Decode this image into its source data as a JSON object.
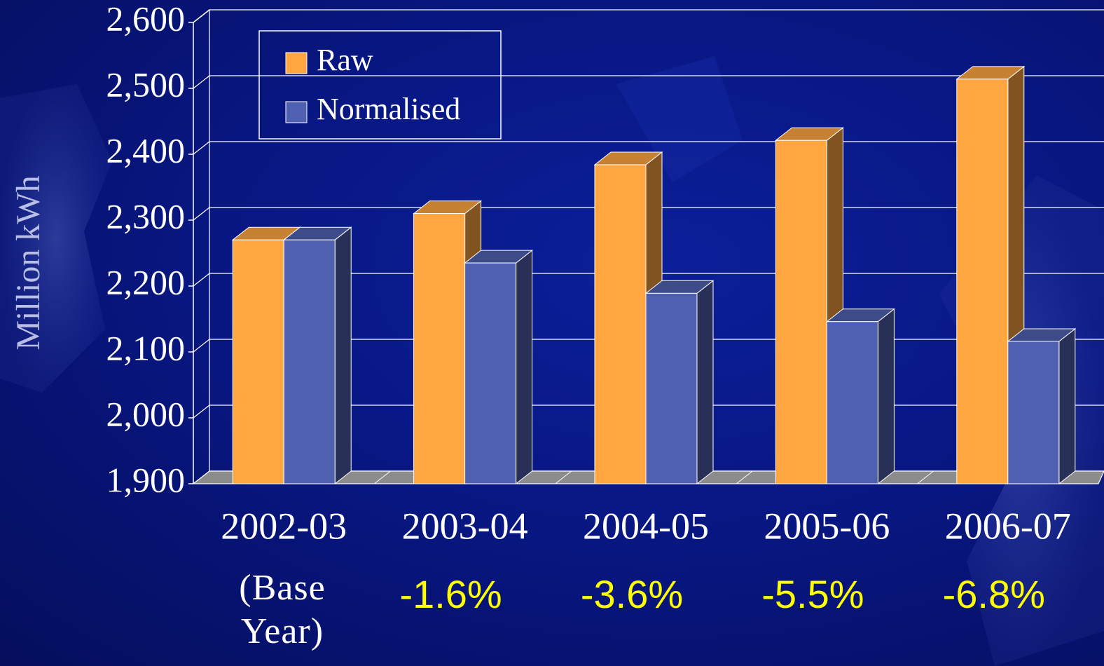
{
  "chart_data": {
    "type": "bar3d",
    "y_label": "Million kWh",
    "categories": [
      "2002-03",
      "2003-04",
      "2004-05",
      "2005-06",
      "2006-07"
    ],
    "series": [
      {
        "name": "Raw",
        "color": "#ffa640",
        "values": [
          2270,
          2310,
          2384,
          2421,
          2514
        ]
      },
      {
        "name": "Normalised",
        "color": "#5060b0",
        "values": [
          2270,
          2235,
          2189,
          2146,
          2116
        ]
      }
    ],
    "ylim": [
      1900,
      2600
    ],
    "yticks": [
      {
        "value": 1900,
        "label": "1,900"
      },
      {
        "value": 2000,
        "label": "2,000"
      },
      {
        "value": 2100,
        "label": "2,100"
      },
      {
        "value": 2200,
        "label": "2,200"
      },
      {
        "value": 2300,
        "label": "2,300"
      },
      {
        "value": 2400,
        "label": "2,400"
      },
      {
        "value": 2500,
        "label": "2,500"
      },
      {
        "value": 2600,
        "label": "2,600"
      }
    ],
    "grid": true,
    "base_year_note": "(Base Year)",
    "change_labels": [
      null,
      "-1.6%",
      "-3.6%",
      "-5.5%",
      "-6.8%"
    ]
  }
}
